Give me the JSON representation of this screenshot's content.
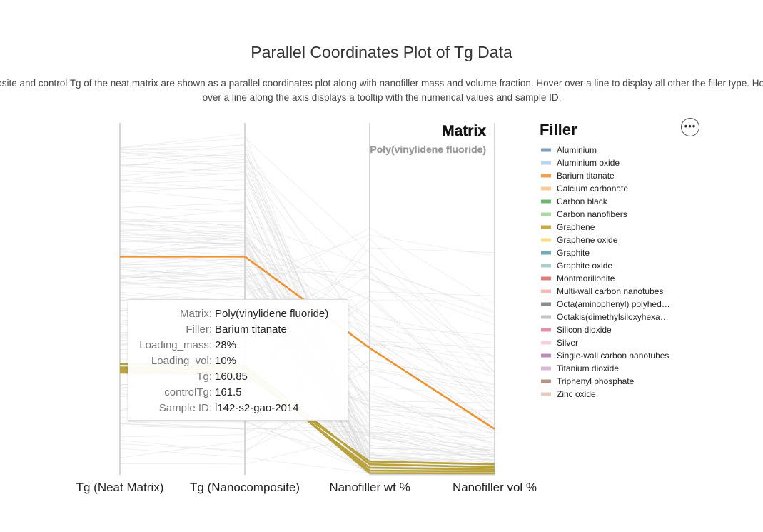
{
  "page": {
    "title": "Parallel Coordinates Plot of Tg Data",
    "description": "composite and control Tg of the neat matrix are shown as a parallel coordinates plot along with nanofiller mass and volume fraction. Hover over a line to display all other the filler type. Hovering over a line along the axis displays a tooltip with the numerical values and sample ID."
  },
  "chart_data": {
    "type": "parallel-coordinates",
    "axes": [
      "Tg (Neat Matrix)",
      "Tg (Nanocomposite)",
      "Nanofiller wt %",
      "Nanofiller vol %"
    ],
    "annotation": {
      "heading": "Matrix",
      "value": "Poly(vinylidene fluoride)"
    },
    "legend": {
      "title": "Filler",
      "placement": "right",
      "items": [
        {
          "label": "Aluminium",
          "color": "#7f9fbf"
        },
        {
          "label": "Aluminium oxide",
          "color": "#b9d6ee"
        },
        {
          "label": "Barium titanate",
          "color": "#f0a050"
        },
        {
          "label": "Calcium carbonate",
          "color": "#f8cc90"
        },
        {
          "label": "Carbon black",
          "color": "#6cb86c"
        },
        {
          "label": "Carbon nanofibers",
          "color": "#a8dca0"
        },
        {
          "label": "Graphene",
          "color": "#c4ac4a"
        },
        {
          "label": "Graphene oxide",
          "color": "#f4dc84"
        },
        {
          "label": "Graphite",
          "color": "#74aab0"
        },
        {
          "label": "Graphite oxide",
          "color": "#a8d0cc"
        },
        {
          "label": "Montmorillonite",
          "color": "#e07c78"
        },
        {
          "label": "Multi-wall carbon nanotubes",
          "color": "#f8b8b4"
        },
        {
          "label": "Octa(aminophenyl) polyhed…",
          "color": "#8c8c8c"
        },
        {
          "label": "Octakis(dimethylsiloxyhexa…",
          "color": "#c4c4c4"
        },
        {
          "label": "Silicon dioxide",
          "color": "#e090aa"
        },
        {
          "label": "Silver",
          "color": "#f8cede"
        },
        {
          "label": "Single-wall carbon nanotubes",
          "color": "#bc8cb8"
        },
        {
          "label": "Titanium dioxide",
          "color": "#dcb8d8"
        },
        {
          "label": "Triphenyl phosphate",
          "color": "#b49484"
        },
        {
          "label": "Zinc oxide",
          "color": "#e4ccc0"
        }
      ]
    },
    "highlighted_lines": [
      {
        "filler": "Barium titanate",
        "color": "#f0922e",
        "values": [
          0.62,
          0.62,
          0.36,
          0.13
        ]
      },
      {
        "filler": "Graphene",
        "color": "#b8a23a",
        "values": [
          0.315,
          0.31,
          0.03,
          0.022
        ]
      },
      {
        "filler": "Graphene",
        "color": "#b8a23a",
        "values": [
          0.295,
          0.29,
          0.02,
          0.015
        ]
      },
      {
        "filler": "Graphene",
        "color": "#b8a23a",
        "values": [
          0.3,
          0.3,
          0.012,
          0.01
        ]
      },
      {
        "filler": "Graphene",
        "color": "#b8a23a",
        "values": [
          0.305,
          0.305,
          0.005,
          0.004
        ]
      },
      {
        "filler": "Graphene",
        "color": "#b8a23a",
        "values": [
          0.29,
          0.285,
          0.038,
          0.03
        ]
      }
    ],
    "tooltip": [
      {
        "key": "Matrix:",
        "value": "Poly(vinylidene fluoride)"
      },
      {
        "key": "Filler:",
        "value": "Barium titanate"
      },
      {
        "key": "Loading_mass:",
        "value": "28%"
      },
      {
        "key": "Loading_vol:",
        "value": "10%"
      },
      {
        "key": "Tg:",
        "value": "160.85"
      },
      {
        "key": "controlTg:",
        "value": "161.5"
      },
      {
        "key": "Sample ID:",
        "value": "l142-s2-gao-2014"
      }
    ],
    "menu_icon": "more-horizontal-icon"
  }
}
